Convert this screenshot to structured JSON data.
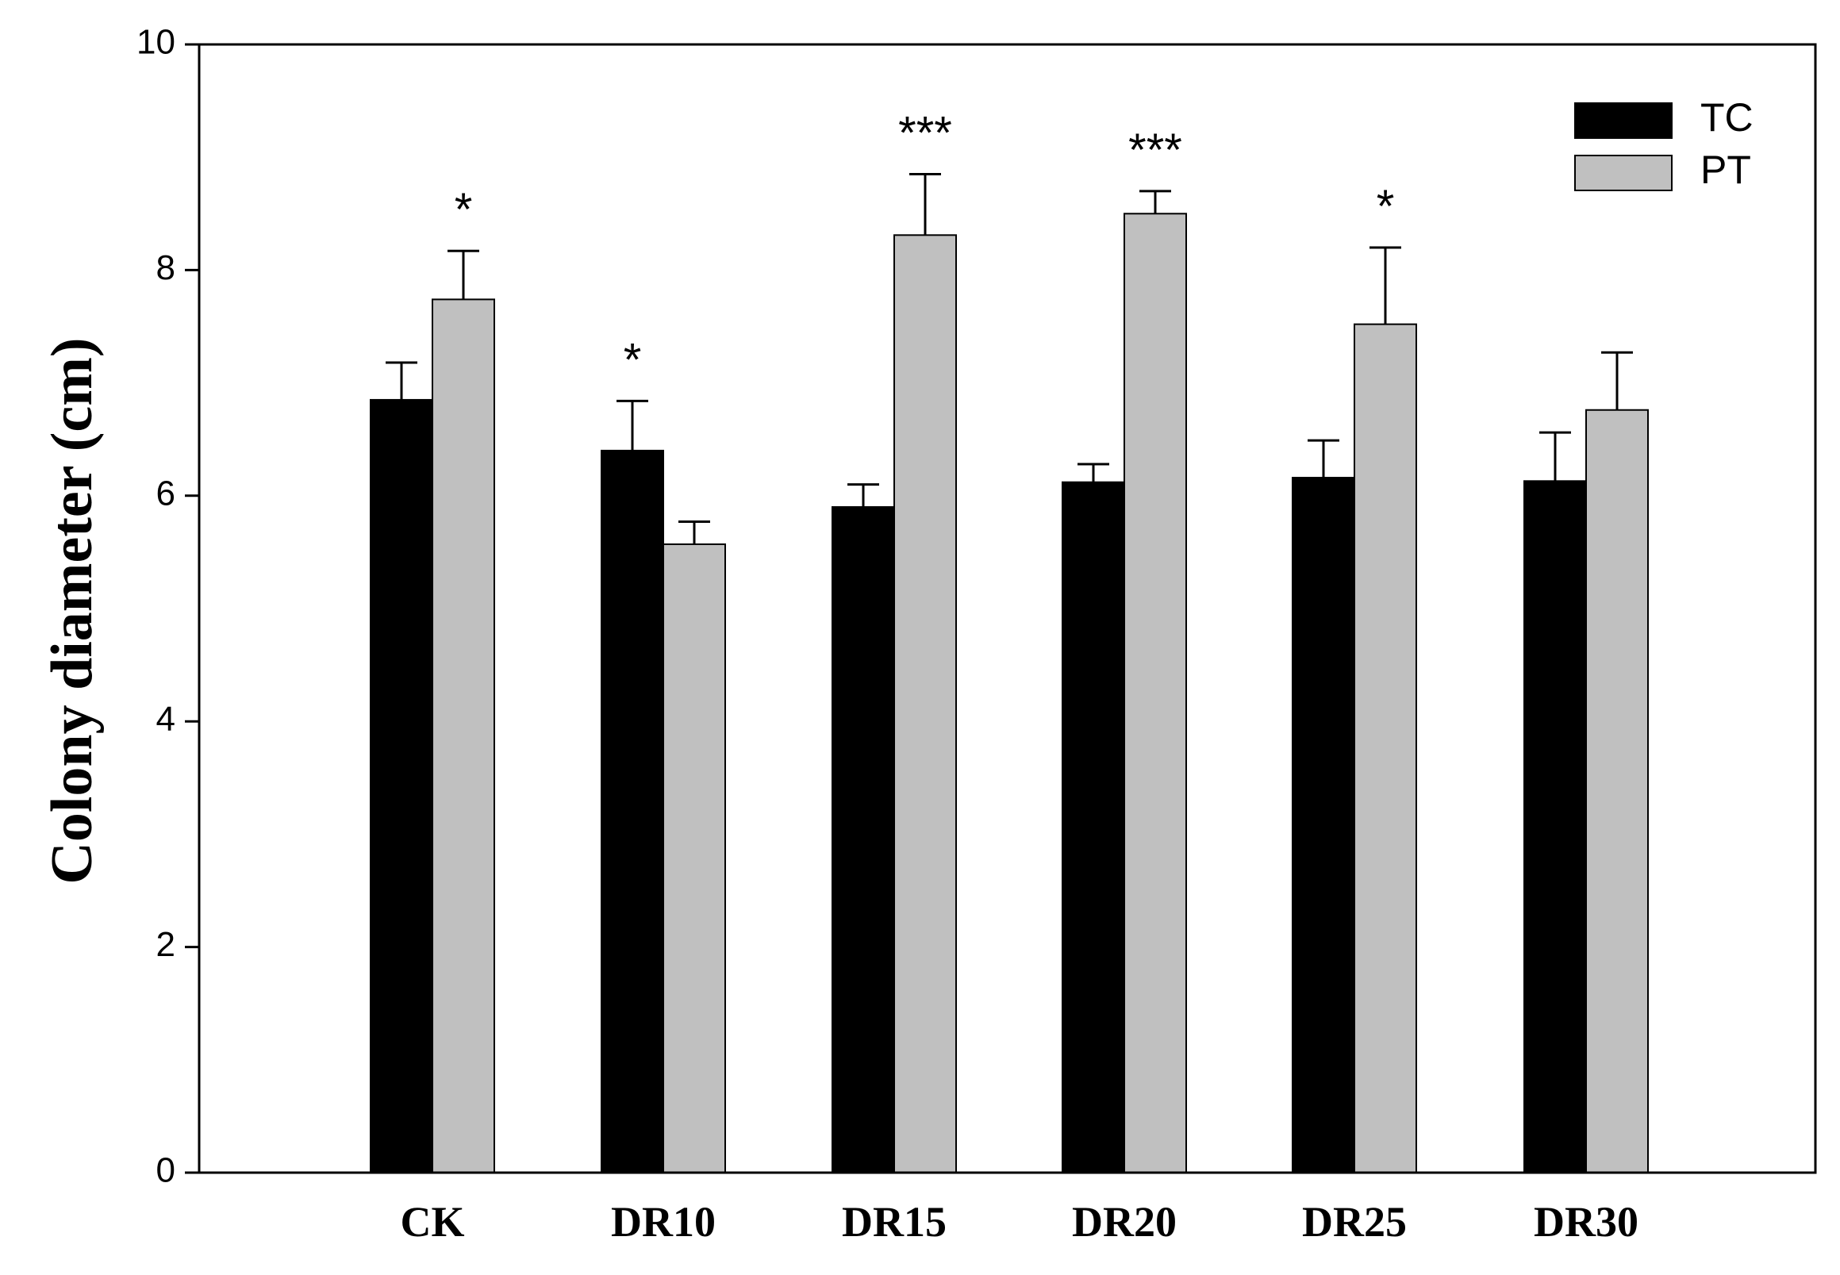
{
  "chart_data": {
    "type": "bar",
    "title": "",
    "xlabel": "",
    "ylabel": "Colony diameter (cm)",
    "ylim": [
      0,
      10
    ],
    "yticks": [
      0,
      2,
      4,
      6,
      8,
      10
    ],
    "grid": false,
    "legend_position": "top-right",
    "categories": [
      "CK",
      "DR10",
      "DR15",
      "DR20",
      "DR25",
      "DR30"
    ],
    "series": [
      {
        "name": "TC",
        "color": "#000000",
        "values": [
          6.85,
          6.4,
          5.9,
          6.12,
          6.16,
          6.13
        ],
        "errors": [
          0.33,
          0.44,
          0.2,
          0.16,
          0.33,
          0.43
        ],
        "significance": [
          "",
          "*",
          "",
          "",
          "",
          ""
        ]
      },
      {
        "name": "PT",
        "color": "#c0c0c0",
        "values": [
          7.74,
          5.57,
          8.31,
          8.5,
          7.52,
          6.76
        ],
        "errors": [
          0.43,
          0.2,
          0.54,
          0.2,
          0.68,
          0.51
        ],
        "significance": [
          "*",
          "",
          "***",
          "***",
          "*",
          ""
        ]
      }
    ]
  }
}
